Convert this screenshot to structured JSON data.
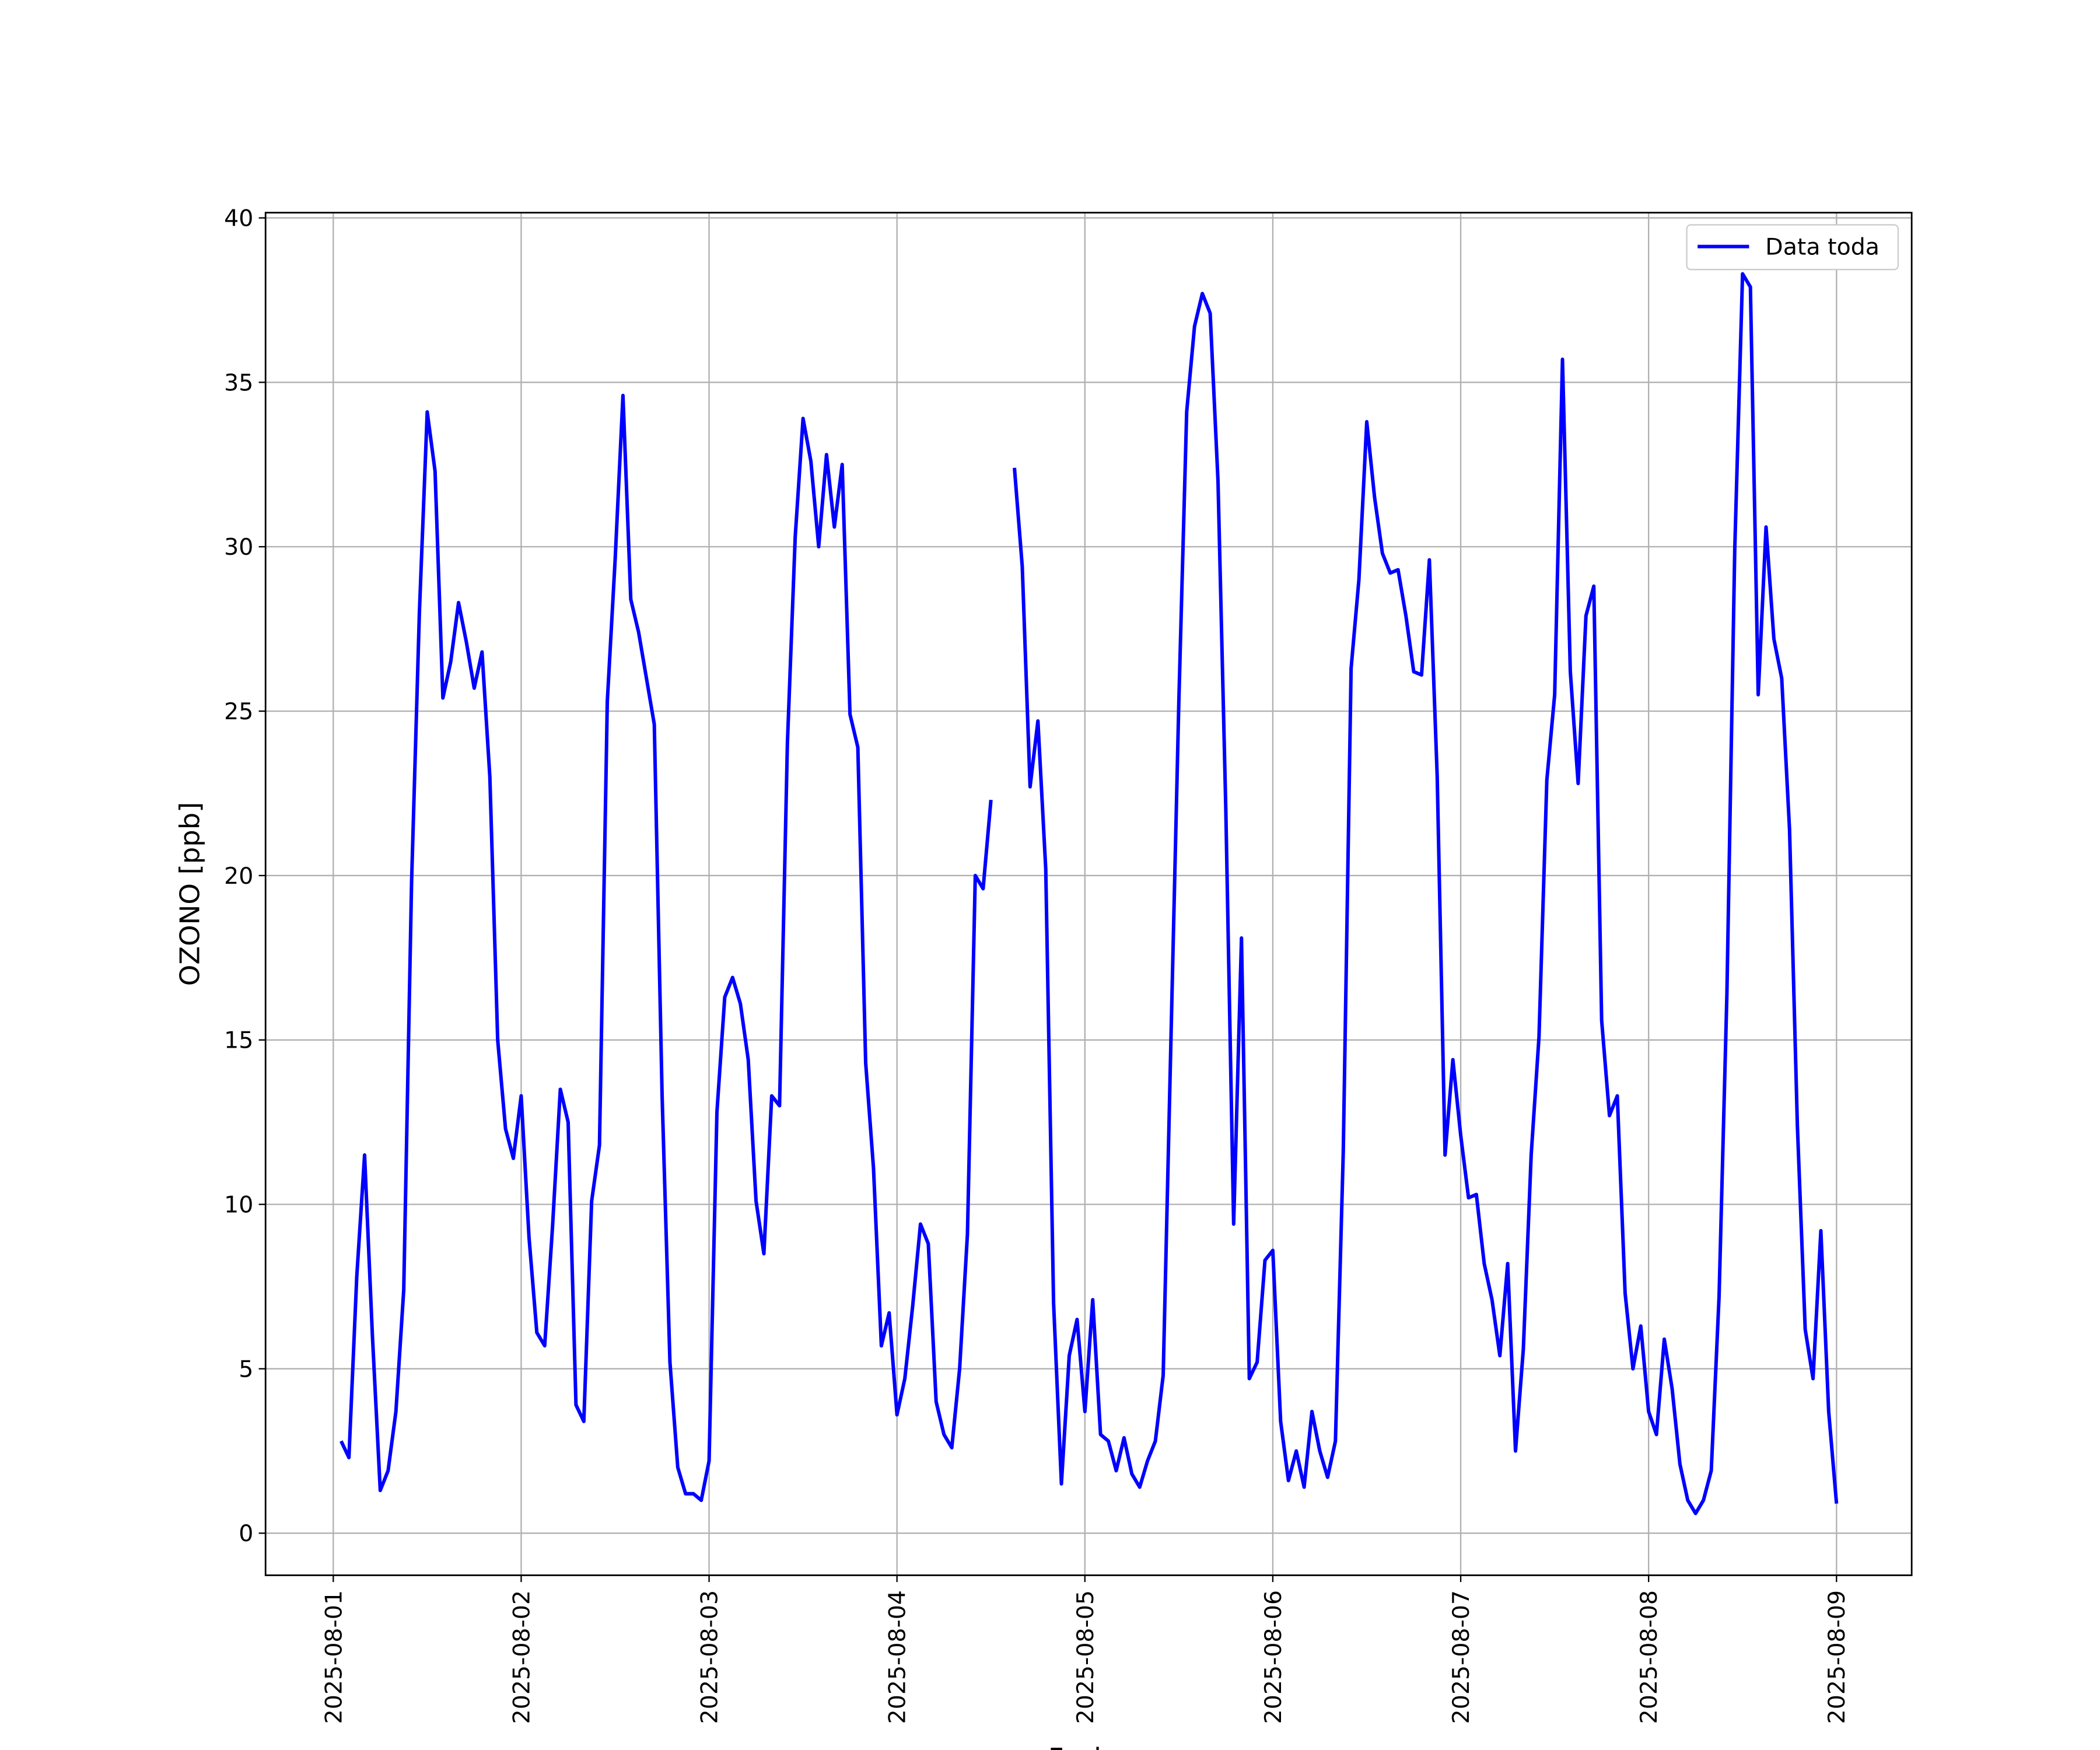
{
  "chart_data": {
    "type": "line",
    "xlabel": "Fecha",
    "ylabel": "OZONO [ppb]",
    "xlim": [
      "2025-07-31 15:21",
      "2025-08-09 09:36"
    ],
    "xticks": [
      "2025-08-01",
      "2025-08-02",
      "2025-08-03",
      "2025-08-04",
      "2025-08-05",
      "2025-08-06",
      "2025-08-07",
      "2025-08-08",
      "2025-08-09"
    ],
    "ylim": [
      -1.28,
      40.16
    ],
    "yticks": [
      0,
      5,
      10,
      15,
      20,
      25,
      30,
      35,
      40
    ],
    "grid": true,
    "legend": "upper right",
    "x": [
      "2025-08-01 01:00",
      "2025-08-01 02:00",
      "2025-08-01 03:00",
      "2025-08-01 04:00",
      "2025-08-01 05:00",
      "2025-08-01 06:00",
      "2025-08-01 07:00",
      "2025-08-01 08:00",
      "2025-08-01 09:00",
      "2025-08-01 10:00",
      "2025-08-01 11:00",
      "2025-08-01 12:00",
      "2025-08-01 13:00",
      "2025-08-01 14:00",
      "2025-08-01 15:00",
      "2025-08-01 16:00",
      "2025-08-01 17:00",
      "2025-08-01 18:00",
      "2025-08-01 19:00",
      "2025-08-01 20:00",
      "2025-08-01 21:00",
      "2025-08-01 22:00",
      "2025-08-01 23:00",
      "2025-08-02 00:00",
      "2025-08-02 01:00",
      "2025-08-02 02:00",
      "2025-08-02 03:00",
      "2025-08-02 04:00",
      "2025-08-02 05:00",
      "2025-08-02 06:00",
      "2025-08-02 07:00",
      "2025-08-02 08:00",
      "2025-08-02 09:00",
      "2025-08-02 10:00",
      "2025-08-02 11:00",
      "2025-08-02 12:00",
      "2025-08-02 13:00",
      "2025-08-02 14:00",
      "2025-08-02 15:00",
      "2025-08-02 16:00",
      "2025-08-02 17:00",
      "2025-08-02 18:00",
      "2025-08-02 19:00",
      "2025-08-02 20:00",
      "2025-08-02 21:00",
      "2025-08-02 22:00",
      "2025-08-02 23:00",
      "2025-08-03 00:00",
      "2025-08-03 01:00",
      "2025-08-03 02:00",
      "2025-08-03 03:00",
      "2025-08-03 04:00",
      "2025-08-03 05:00",
      "2025-08-03 06:00",
      "2025-08-03 07:00",
      "2025-08-03 08:00",
      "2025-08-03 09:00",
      "2025-08-03 10:00",
      "2025-08-03 11:00",
      "2025-08-03 12:00",
      "2025-08-03 13:00",
      "2025-08-03 14:00",
      "2025-08-03 15:00",
      "2025-08-03 16:00",
      "2025-08-03 17:00",
      "2025-08-03 18:00",
      "2025-08-03 19:00",
      "2025-08-03 20:00",
      "2025-08-03 21:00",
      "2025-08-03 22:00",
      "2025-08-03 23:00",
      "2025-08-04 00:00",
      "2025-08-04 01:00",
      "2025-08-04 02:00",
      "2025-08-04 03:00",
      "2025-08-04 04:00",
      "2025-08-04 05:00",
      "2025-08-04 06:00",
      "2025-08-04 07:00",
      "2025-08-04 08:00",
      "2025-08-04 09:00",
      "2025-08-04 10:00",
      "2025-08-04 11:00",
      "2025-08-04 12:00",
      "2025-08-04 13:00",
      "2025-08-04 14:00",
      "2025-08-04 15:00",
      "2025-08-04 16:00",
      "2025-08-04 17:00",
      "2025-08-04 18:00",
      "2025-08-04 19:00",
      "2025-08-04 20:00",
      "2025-08-04 21:00",
      "2025-08-04 22:00",
      "2025-08-04 23:00",
      "2025-08-05 00:00",
      "2025-08-05 01:00",
      "2025-08-05 02:00",
      "2025-08-05 03:00",
      "2025-08-05 04:00",
      "2025-08-05 05:00",
      "2025-08-05 06:00",
      "2025-08-05 07:00",
      "2025-08-05 08:00",
      "2025-08-05 09:00",
      "2025-08-05 10:00",
      "2025-08-05 11:00",
      "2025-08-05 12:00",
      "2025-08-05 13:00",
      "2025-08-05 14:00",
      "2025-08-05 15:00",
      "2025-08-05 16:00",
      "2025-08-05 17:00",
      "2025-08-05 18:00",
      "2025-08-05 19:00",
      "2025-08-05 20:00",
      "2025-08-05 21:00",
      "2025-08-05 22:00",
      "2025-08-05 23:00",
      "2025-08-06 00:00",
      "2025-08-06 01:00",
      "2025-08-06 02:00",
      "2025-08-06 03:00",
      "2025-08-06 04:00",
      "2025-08-06 05:00",
      "2025-08-06 06:00",
      "2025-08-06 07:00",
      "2025-08-06 08:00",
      "2025-08-06 09:00",
      "2025-08-06 10:00",
      "2025-08-06 11:00",
      "2025-08-06 12:00",
      "2025-08-06 13:00",
      "2025-08-06 14:00",
      "2025-08-06 15:00",
      "2025-08-06 16:00",
      "2025-08-06 17:00",
      "2025-08-06 18:00",
      "2025-08-06 19:00",
      "2025-08-06 20:00",
      "2025-08-06 21:00",
      "2025-08-06 22:00",
      "2025-08-06 23:00",
      "2025-08-07 00:00",
      "2025-08-07 01:00",
      "2025-08-07 02:00",
      "2025-08-07 03:00",
      "2025-08-07 04:00",
      "2025-08-07 05:00",
      "2025-08-07 06:00",
      "2025-08-07 07:00",
      "2025-08-07 08:00",
      "2025-08-07 09:00",
      "2025-08-07 10:00",
      "2025-08-07 11:00",
      "2025-08-07 12:00",
      "2025-08-07 13:00",
      "2025-08-07 14:00",
      "2025-08-07 15:00",
      "2025-08-07 16:00",
      "2025-08-07 17:00",
      "2025-08-07 18:00",
      "2025-08-07 19:00",
      "2025-08-07 20:00",
      "2025-08-07 21:00",
      "2025-08-07 22:00",
      "2025-08-07 23:00",
      "2025-08-08 00:00",
      "2025-08-08 01:00",
      "2025-08-08 02:00",
      "2025-08-08 03:00",
      "2025-08-08 04:00",
      "2025-08-08 05:00",
      "2025-08-08 06:00",
      "2025-08-08 07:00",
      "2025-08-08 08:00",
      "2025-08-08 09:00",
      "2025-08-08 10:00",
      "2025-08-08 11:00",
      "2025-08-08 12:00",
      "2025-08-08 13:00",
      "2025-08-08 14:00",
      "2025-08-08 15:00",
      "2025-08-08 16:00",
      "2025-08-08 17:00",
      "2025-08-08 18:00",
      "2025-08-08 19:00",
      "2025-08-08 20:00",
      "2025-08-08 21:00",
      "2025-08-08 22:00",
      "2025-08-08 23:00",
      "2025-08-09 00:00"
    ],
    "series": [
      {
        "name": "Data toda",
        "color": "#0000ff",
        "values": [
          2.8,
          2.3,
          7.8,
          11.5,
          6.0,
          1.3,
          1.9,
          3.7,
          7.4,
          19.8,
          28.0,
          34.1,
          32.3,
          25.4,
          26.5,
          28.3,
          27.1,
          25.7,
          26.8,
          23.0,
          15.0,
          12.3,
          11.4,
          13.3,
          9.0,
          6.1,
          5.7,
          9.3,
          13.5,
          12.5,
          3.9,
          3.4,
          10.1,
          11.8,
          25.3,
          29.6,
          34.6,
          28.4,
          27.4,
          26.0,
          24.6,
          13.3,
          5.2,
          2.0,
          1.2,
          1.2,
          1.0,
          2.2,
          12.8,
          16.3,
          16.9,
          16.1,
          14.4,
          10.1,
          8.5,
          13.3,
          13.0,
          24.0,
          30.3,
          33.9,
          32.6,
          30.0,
          32.8,
          30.6,
          32.5,
          24.9,
          23.9,
          14.3,
          11.1,
          5.7,
          6.7,
          3.6,
          4.7,
          6.9,
          9.4,
          8.8,
          4.0,
          3.0,
          2.6,
          5.0,
          9.1,
          20.0,
          19.6,
          22.3,
          null,
          null,
          32.4,
          29.4,
          22.7,
          24.7,
          20.2,
          7.0,
          1.5,
          5.4,
          6.5,
          3.7,
          7.1,
          3.0,
          2.8,
          1.9,
          2.9,
          1.8,
          1.4,
          2.2,
          2.8,
          4.8,
          15.1,
          25.3,
          34.1,
          36.7,
          37.7,
          37.1,
          32.0,
          22.0,
          9.4,
          18.1,
          4.7,
          5.2,
          8.3,
          8.6,
          3.4,
          1.6,
          2.5,
          1.4,
          3.7,
          2.5,
          1.7,
          2.8,
          11.6,
          26.3,
          29.0,
          33.8,
          31.5,
          29.8,
          29.2,
          29.3,
          27.9,
          26.2,
          26.1,
          29.6,
          23.0,
          11.5,
          14.4,
          12.1,
          10.2,
          10.3,
          8.2,
          7.1,
          5.4,
          8.2,
          2.5,
          5.6,
          11.5,
          15.1,
          22.9,
          25.5,
          35.7,
          26.2,
          22.8,
          27.9,
          28.8,
          15.6,
          12.7,
          13.3,
          7.3,
          5.0,
          6.3,
          3.7,
          3.0,
          5.9,
          4.4,
          2.1,
          1.0,
          0.6,
          1.0,
          1.9,
          7.2,
          16.4,
          29.9,
          38.3,
          37.9,
          25.5,
          30.6,
          27.2,
          26.0,
          21.4,
          12.4,
          6.2,
          4.7,
          9.2,
          3.7,
          0.9
        ]
      }
    ]
  }
}
